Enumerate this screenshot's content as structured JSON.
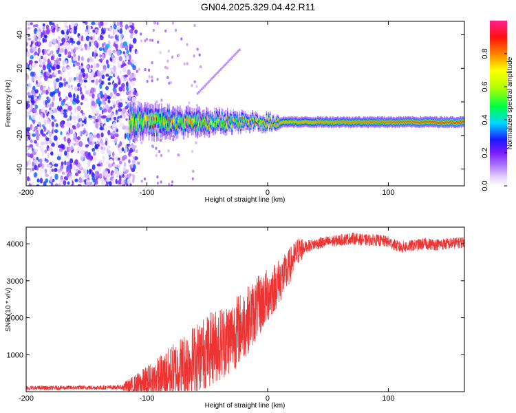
{
  "title": "GN04.2025.329.04.42.R11",
  "chart_data": [
    {
      "type": "heatmap",
      "name": "spectrogram",
      "xlabel": "Height of straight line (km)",
      "ylabel": "Frequency (Hz)",
      "xlim": [
        -200,
        163
      ],
      "ylim": [
        -50,
        48
      ],
      "xticks": [
        -200,
        -100,
        0,
        100
      ],
      "yticks": [
        -40,
        -20,
        0,
        20,
        40
      ],
      "colorbar": {
        "label": "Normalized spectral amplitude",
        "range": [
          0,
          1
        ],
        "ticks": [
          0.0,
          0.2,
          0.4,
          0.6,
          0.8
        ],
        "tick_labels": [
          "0.0",
          "0.2",
          "0.4",
          "0.6",
          "0.8"
        ]
      },
      "features": [
        {
          "label": "noise",
          "x_range": [
            -200,
            -115
          ],
          "freq_range": [
            -50,
            48
          ],
          "amplitude": 0.15
        },
        {
          "label": "signal_track",
          "x_range": [
            -115,
            163
          ],
          "freq_center": -12,
          "freq_spread": [
            10,
            3
          ],
          "amplitude": 0.9
        }
      ]
    },
    {
      "type": "line",
      "name": "snr",
      "xlabel": "Height of straight line (km)",
      "ylabel": "SNR (10 * v/v)",
      "xlim": [
        -200,
        163
      ],
      "ylim": [
        0,
        4450
      ],
      "xticks": [
        -200,
        -100,
        0,
        100
      ],
      "yticks": [
        1000,
        2000,
        3000,
        4000
      ],
      "color": "#ee3333",
      "series": [
        {
          "name": "SNR",
          "x": [
            -200,
            -180,
            -160,
            -140,
            -120,
            -110,
            -100,
            -90,
            -80,
            -70,
            -60,
            -50,
            -40,
            -30,
            -20,
            -15,
            -10,
            -5,
            0,
            5,
            10,
            15,
            20,
            25,
            30,
            40,
            50,
            60,
            70,
            80,
            90,
            100,
            110,
            120,
            130,
            140,
            150,
            163
          ],
          "values": [
            100,
            100,
            110,
            110,
            120,
            150,
            250,
            350,
            500,
            700,
            900,
            1100,
            1300,
            1500,
            1800,
            2000,
            2200,
            2400,
            2600,
            2800,
            3000,
            3200,
            3500,
            3800,
            3900,
            4000,
            4050,
            4100,
            4150,
            4100,
            4100,
            4050,
            3900,
            3950,
            4000,
            3980,
            4000,
            4050
          ]
        }
      ]
    }
  ]
}
